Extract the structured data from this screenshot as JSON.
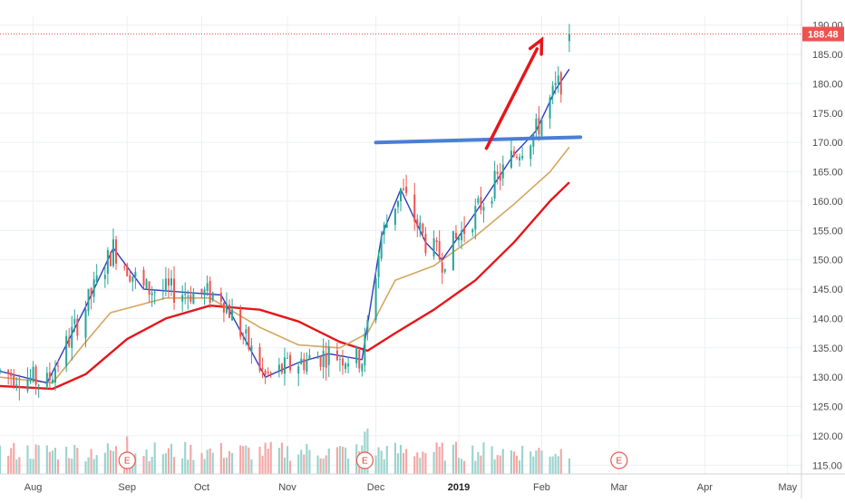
{
  "chart_data": {
    "type": "candlestick",
    "title": "",
    "xlabel": "",
    "ylabel": "",
    "ylim": [
      113.5,
      191.5
    ],
    "y_ticks": [
      115,
      120,
      125,
      130,
      135,
      140,
      145,
      150,
      155,
      160,
      165,
      170,
      175,
      180,
      185,
      190
    ],
    "y_tick_labels": [
      "115.00",
      "120.00",
      "125.00",
      "130.00",
      "135.00",
      "140.00",
      "145.00",
      "150.00",
      "155.00",
      "160.00",
      "165.00",
      "170.00",
      "175.00",
      "180.00",
      "185.00",
      "190.00"
    ],
    "x_ticks": [
      {
        "label": "Aug",
        "date": "2018-08-01",
        "bold": false
      },
      {
        "label": "Sep",
        "date": "2018-09-04",
        "bold": false
      },
      {
        "label": "Oct",
        "date": "2018-10-01",
        "bold": false
      },
      {
        "label": "Nov",
        "date": "2018-11-01",
        "bold": false
      },
      {
        "label": "Dec",
        "date": "2018-12-03",
        "bold": false
      },
      {
        "label": "2019",
        "date": "2019-01-02",
        "bold": true
      },
      {
        "label": "Feb",
        "date": "2019-02-01",
        "bold": false
      },
      {
        "label": "Mar",
        "date": "2019-03-01",
        "bold": false
      },
      {
        "label": "Apr",
        "date": "2019-04-01",
        "bold": false
      },
      {
        "label": "May",
        "date": "2019-05-01",
        "bold": false
      }
    ],
    "x_range": [
      "2018-07-20",
      "2019-05-06"
    ],
    "grid": true,
    "last_price": 188.48,
    "last_price_label": "188.48",
    "colors": {
      "up": "#26a69a",
      "down": "#ef5350",
      "volume_up": "#9bd3cd",
      "volume_down": "#f4a7a5",
      "ma_fast": "#2f3bbf",
      "ma_mid": "#d4a760",
      "ma_slow": "#e5161b",
      "trendline": "#4a7fd4",
      "arrow": "#e5161b",
      "price_line": "#ef5350",
      "grid": "#eceff2"
    },
    "candles": [],
    "series": [
      {
        "values": [
          [
            "2018-07-20",
            128.5
          ],
          [
            "2018-08-08",
            128.0
          ],
          [
            "2018-08-20",
            130.5
          ],
          [
            "2018-09-04",
            136.5
          ],
          [
            "2018-09-18",
            140.0
          ],
          [
            "2018-10-04",
            142.2
          ],
          [
            "2018-10-22",
            141.5
          ],
          [
            "2018-11-05",
            139.5
          ],
          [
            "2018-11-20",
            136.0
          ],
          [
            "2018-11-30",
            134.5
          ],
          [
            "2018-12-10",
            137.5
          ],
          [
            "2018-12-24",
            141.5
          ],
          [
            "2019-01-08",
            146.5
          ],
          [
            "2019-01-22",
            153.0
          ],
          [
            "2019-02-04",
            160.0
          ],
          [
            "2019-02-11",
            163.2
          ]
        ]
      },
      {
        "values": [
          [
            "2018-07-20",
            130.0
          ],
          [
            "2018-08-08",
            129.0
          ],
          [
            "2018-08-20",
            136.0
          ],
          [
            "2018-08-29",
            141.0
          ],
          [
            "2018-09-18",
            143.5
          ],
          [
            "2018-10-04",
            143.5
          ],
          [
            "2018-10-22",
            138.5
          ],
          [
            "2018-11-05",
            135.5
          ],
          [
            "2018-11-20",
            135.0
          ],
          [
            "2018-11-30",
            137.5
          ],
          [
            "2018-12-10",
            146.5
          ],
          [
            "2018-12-24",
            149.0
          ],
          [
            "2019-01-08",
            154.0
          ],
          [
            "2019-01-22",
            159.5
          ],
          [
            "2019-02-04",
            165.0
          ],
          [
            "2019-02-11",
            169.2
          ]
        ]
      },
      {
        "values": [
          [
            "2018-07-20",
            131.0
          ],
          [
            "2018-08-06",
            129.0
          ],
          [
            "2018-08-20",
            142.0
          ],
          [
            "2018-08-30",
            152.0
          ],
          [
            "2018-09-10",
            145.0
          ],
          [
            "2018-09-24",
            144.5
          ],
          [
            "2018-10-08",
            144.0
          ],
          [
            "2018-10-24",
            130.0
          ],
          [
            "2018-11-05",
            132.5
          ],
          [
            "2018-11-16",
            134.0
          ],
          [
            "2018-11-28",
            133.0
          ],
          [
            "2018-12-05",
            154.0
          ],
          [
            "2018-12-12",
            162.0
          ],
          [
            "2018-12-21",
            153.0
          ],
          [
            "2018-12-27",
            150.0
          ],
          [
            "2019-01-08",
            158.0
          ],
          [
            "2019-01-22",
            168.0
          ],
          [
            "2019-01-30",
            172.0
          ],
          [
            "2019-02-06",
            179.0
          ],
          [
            "2019-02-11",
            182.5
          ]
        ]
      }
    ],
    "volume": [],
    "trendline": {
      "from": [
        "2018-12-03",
        170.0
      ],
      "to": [
        "2019-02-15",
        170.9
      ]
    },
    "arrow": {
      "from": [
        "2019-01-12",
        169.0
      ],
      "to": [
        "2019-02-01",
        187.5
      ]
    },
    "earnings_markers": [
      {
        "date": "2018-09-04",
        "label": "E"
      },
      {
        "date": "2018-11-29",
        "label": "E"
      },
      {
        "date": "2019-03-01",
        "label": "E"
      }
    ]
  }
}
